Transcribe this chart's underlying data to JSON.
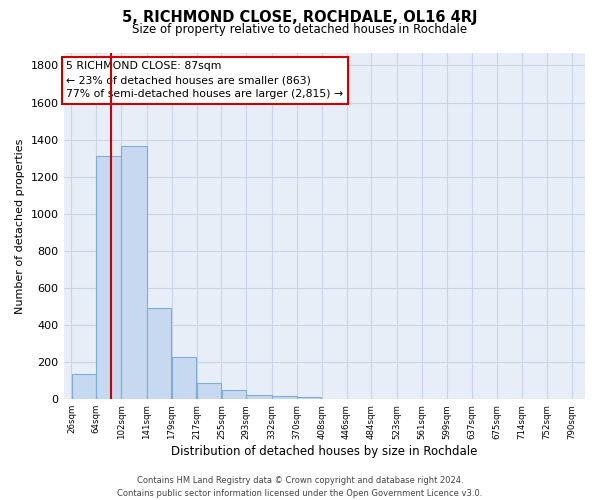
{
  "title": "5, RICHMOND CLOSE, ROCHDALE, OL16 4RJ",
  "subtitle": "Size of property relative to detached houses in Rochdale",
  "xlabel": "Distribution of detached houses by size in Rochdale",
  "ylabel": "Number of detached properties",
  "bar_values": [
    135,
    1310,
    1365,
    490,
    225,
    85,
    50,
    25,
    15,
    10
  ],
  "bar_left_edges": [
    26,
    64,
    102,
    141,
    179,
    217,
    255,
    293,
    332,
    370
  ],
  "bar_widths": [
    38,
    38,
    39,
    38,
    38,
    38,
    38,
    39,
    38,
    38
  ],
  "bar_color": "#c6d9f0",
  "bar_edge_color": "#7bafd4",
  "all_tick_labels": [
    "26sqm",
    "64sqm",
    "102sqm",
    "141sqm",
    "179sqm",
    "217sqm",
    "255sqm",
    "293sqm",
    "332sqm",
    "370sqm",
    "408sqm",
    "446sqm",
    "484sqm",
    "523sqm",
    "561sqm",
    "599sqm",
    "637sqm",
    "675sqm",
    "714sqm",
    "752sqm",
    "790sqm"
  ],
  "all_tick_positions": [
    26,
    64,
    102,
    141,
    179,
    217,
    255,
    293,
    332,
    370,
    408,
    446,
    484,
    523,
    561,
    599,
    637,
    675,
    714,
    752,
    790
  ],
  "xlim": [
    14,
    810
  ],
  "ylim": [
    0,
    1870
  ],
  "yticks": [
    0,
    200,
    400,
    600,
    800,
    1000,
    1200,
    1400,
    1600,
    1800
  ],
  "property_line_x": 87,
  "property_line_color": "#cc0000",
  "annotation_line1": "5 RICHMOND CLOSE: 87sqm",
  "annotation_line2": "← 23% of detached houses are smaller (863)",
  "annotation_line3": "77% of semi-detached houses are larger (2,815) →",
  "footer_line1": "Contains HM Land Registry data © Crown copyright and database right 2024.",
  "footer_line2": "Contains public sector information licensed under the Open Government Licence v3.0.",
  "background_color": "#ffffff",
  "plot_bg_color": "#e8eef8",
  "grid_color": "#c8d4e8"
}
